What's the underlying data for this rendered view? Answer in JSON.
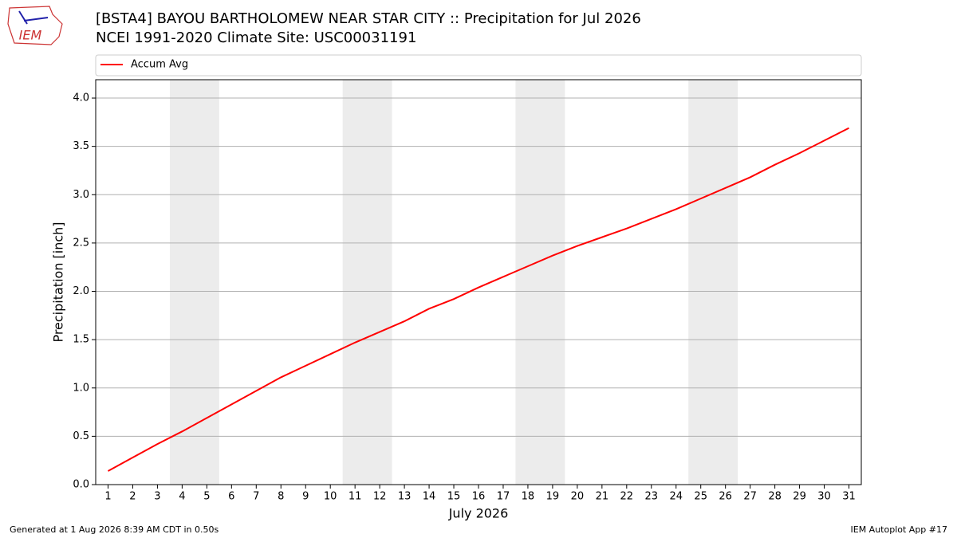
{
  "logo_text": "IEM",
  "footer_left": "Generated at 1 Aug 2026 8:39 AM CDT in 0.50s",
  "footer_right": "IEM Autoplot App #17",
  "chart_data": {
    "type": "line",
    "title": "[BSTA4] BAYOU BARTHOLOMEW NEAR STAR CITY :: Precipitation for Jul 2026",
    "subtitle": "NCEI 1991-2020 Climate Site: USC00031191",
    "xlabel": "July 2026",
    "ylabel": "Precipitation [inch]",
    "x": [
      1,
      2,
      3,
      4,
      5,
      6,
      7,
      8,
      9,
      10,
      11,
      12,
      13,
      14,
      15,
      16,
      17,
      18,
      19,
      20,
      21,
      22,
      23,
      24,
      25,
      26,
      27,
      28,
      29,
      30,
      31
    ],
    "series": [
      {
        "name": "Accum Avg",
        "color": "#ff0000",
        "values": [
          0.14,
          0.28,
          0.42,
          0.55,
          0.69,
          0.83,
          0.97,
          1.11,
          1.23,
          1.35,
          1.47,
          1.58,
          1.69,
          1.82,
          1.92,
          2.04,
          2.15,
          2.26,
          2.37,
          2.47,
          2.56,
          2.65,
          2.75,
          2.85,
          2.96,
          3.07,
          3.18,
          3.31,
          3.43,
          3.56,
          3.69
        ]
      }
    ],
    "shaded_spans": [
      [
        3.5,
        5.5
      ],
      [
        10.5,
        12.5
      ],
      [
        17.5,
        19.5
      ],
      [
        24.5,
        26.5
      ]
    ],
    "shade_color": "#ececec",
    "xlim": [
      0.5,
      31.5
    ],
    "ylim": [
      0,
      4.19
    ],
    "xticks": [
      1,
      2,
      3,
      4,
      5,
      6,
      7,
      8,
      9,
      10,
      11,
      12,
      13,
      14,
      15,
      16,
      17,
      18,
      19,
      20,
      21,
      22,
      23,
      24,
      25,
      26,
      27,
      28,
      29,
      30,
      31
    ],
    "yticks": [
      {
        "value": 0,
        "label": "0.0"
      },
      0.5,
      {
        "value": 1,
        "label": "1.0"
      },
      1.5,
      {
        "value": 2,
        "label": "2.0"
      },
      2.5,
      {
        "value": 3,
        "label": "3.0"
      },
      3.5,
      {
        "value": 4,
        "label": "4.0"
      }
    ],
    "grid": true,
    "legend": "top"
  }
}
